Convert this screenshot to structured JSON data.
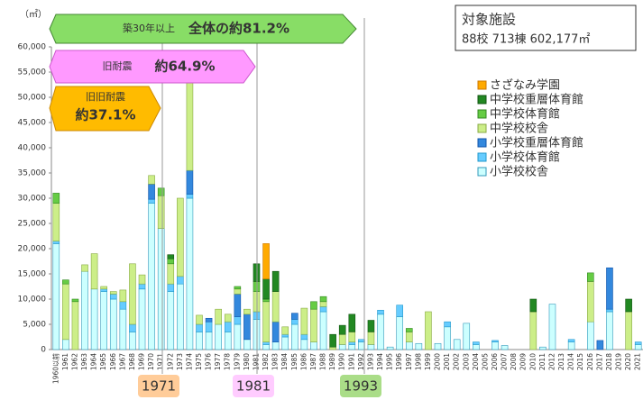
{
  "chart_data": {
    "type": "stacked_bar",
    "y_unit": "（㎡）",
    "facility_title": "対象施設",
    "facility_summary": "88校 713棟 602,177㎡",
    "ann_over30": "築30年以上",
    "ann_over30_pct": "全体の約81.2%",
    "ann_old": "旧耐震",
    "ann_old_pct": "約64.9%",
    "ann_oldold": "旧旧耐震",
    "ann_oldold_pct": "約37.1%",
    "year_tags": [
      "1971",
      "1981",
      "1993"
    ],
    "categories": [
      "1960以前",
      "1961",
      "1962",
      "1963",
      "1964",
      "1965",
      "1966",
      "1967",
      "1968",
      "1969",
      "1970",
      "1971",
      "1972",
      "1973",
      "1974",
      "1975",
      "1976",
      "1977",
      "1978",
      "1979",
      "1980",
      "1981",
      "1982",
      "1983",
      "1984",
      "1985",
      "1986",
      "1987",
      "1988",
      "1989",
      "1990",
      "1991",
      "1992",
      "1993",
      "1994",
      "1995",
      "1996",
      "1997",
      "1998",
      "1999",
      "2000",
      "2001",
      "2002",
      "2003",
      "2004",
      "2005",
      "2006",
      "2007",
      "2008",
      "2009",
      "2010",
      "2011",
      "2012",
      "2013",
      "2014",
      "2015",
      "2016",
      "2017",
      "2018",
      "2019",
      "2020",
      "2021"
    ],
    "series": [
      {
        "name": "小学校校舎",
        "color": "#ccffff",
        "values": [
          21000,
          2000,
          0,
          15500,
          12000,
          11500,
          10000,
          8000,
          3500,
          12000,
          29000,
          24000,
          11500,
          13000,
          30000,
          3500,
          3500,
          5000,
          3500,
          5000,
          2000,
          6000,
          1000,
          1500,
          2500,
          5000,
          2000,
          1500,
          7500,
          0,
          1000,
          1000,
          1500,
          1000,
          7000,
          500,
          6500,
          1500,
          1200,
          0,
          1200,
          4500,
          2000,
          5200,
          1000,
          0,
          1500,
          800,
          0,
          0,
          0,
          500,
          9000,
          0,
          1500,
          0,
          5500,
          0,
          7500,
          0,
          0,
          1000
        ]
      },
      {
        "name": "小学校体育館",
        "color": "#66ccff",
        "values": [
          500,
          0,
          0,
          0,
          0,
          500,
          1000,
          1500,
          1500,
          1000,
          800,
          0,
          1500,
          1500,
          800,
          1500,
          2000,
          0,
          2000,
          1500,
          0,
          1500,
          500,
          0,
          500,
          1000,
          1000,
          0,
          1000,
          0,
          0,
          500,
          500,
          0,
          800,
          0,
          2300,
          0,
          0,
          0,
          0,
          1000,
          0,
          0,
          500,
          0,
          300,
          0,
          0,
          0,
          0,
          0,
          0,
          0,
          500,
          0,
          0,
          0,
          500,
          0,
          0,
          500
        ]
      },
      {
        "name": "小学校重層体育館",
        "color": "#3388dd",
        "values": [
          0,
          0,
          0,
          0,
          0,
          0,
          0,
          0,
          0,
          0,
          3000,
          0,
          0,
          0,
          4700,
          0,
          700,
          0,
          0,
          4500,
          5000,
          0,
          0,
          4000,
          0,
          1200,
          0,
          0,
          0,
          0,
          0,
          0,
          0,
          0,
          0,
          0,
          0,
          0,
          0,
          0,
          0,
          0,
          0,
          0,
          0,
          0,
          0,
          0,
          0,
          0,
          0,
          0,
          0,
          0,
          0,
          0,
          0,
          1800,
          8200,
          0,
          0,
          0
        ]
      },
      {
        "name": "中学校校舎",
        "color": "#ccee88",
        "values": [
          7500,
          11000,
          9500,
          1300,
          7000,
          500,
          500,
          2300,
          12000,
          1800,
          1700,
          6500,
          4000,
          15500,
          22500,
          1800,
          0,
          3000,
          1500,
          1000,
          1000,
          4000,
          8000,
          6000,
          1500,
          0,
          5200,
          6500,
          1000,
          500,
          2000,
          2000,
          0,
          2500,
          0,
          0,
          0,
          2000,
          0,
          7500,
          0,
          0,
          0,
          0,
          0,
          0,
          0,
          0,
          0,
          0,
          7500,
          0,
          0,
          0,
          0,
          0,
          8000,
          0,
          0,
          0,
          7500,
          0
        ]
      },
      {
        "name": "中学校体育館",
        "color": "#66cc44",
        "values": [
          2000,
          800,
          500,
          0,
          0,
          0,
          0,
          0,
          0,
          0,
          0,
          1500,
          1000,
          0,
          0,
          0,
          0,
          0,
          0,
          500,
          0,
          2000,
          500,
          0,
          0,
          0,
          0,
          1500,
          1000,
          0,
          0,
          0,
          0,
          0,
          0,
          0,
          0,
          700,
          0,
          0,
          0,
          0,
          0,
          0,
          0,
          0,
          0,
          0,
          0,
          0,
          0,
          0,
          0,
          0,
          0,
          0,
          1700,
          0,
          0,
          0,
          0,
          0
        ]
      },
      {
        "name": "中学校重層体育館",
        "color": "#228822",
        "values": [
          0,
          0,
          0,
          0,
          0,
          0,
          0,
          0,
          0,
          0,
          0,
          0,
          800,
          0,
          0,
          0,
          0,
          0,
          0,
          0,
          0,
          3500,
          4000,
          4000,
          0,
          0,
          0,
          0,
          0,
          2500,
          1800,
          3500,
          0,
          2300,
          0,
          0,
          0,
          0,
          0,
          0,
          0,
          0,
          0,
          0,
          0,
          0,
          0,
          0,
          0,
          0,
          2500,
          0,
          0,
          0,
          0,
          0,
          0,
          0,
          0,
          0,
          2500,
          0
        ]
      },
      {
        "name": "さざなみ学園",
        "color": "#ffaa00",
        "values": [
          0,
          0,
          0,
          0,
          0,
          0,
          0,
          0,
          0,
          0,
          0,
          0,
          0,
          0,
          0,
          0,
          0,
          0,
          0,
          0,
          0,
          0,
          7000,
          0,
          0,
          0,
          0,
          0,
          0,
          0,
          0,
          0,
          0,
          0,
          0,
          0,
          0,
          0,
          0,
          0,
          0,
          0,
          0,
          0,
          0,
          0,
          0,
          0,
          0,
          0,
          0,
          0,
          0,
          0,
          0,
          0,
          0,
          0,
          0,
          0,
          0,
          0
        ]
      }
    ],
    "ylim": [
      0,
      60000
    ],
    "yticks": [
      0,
      {
        "value": 5000,
        "label": "5,000"
      },
      {
        "value": 10000,
        "label": "10,000"
      },
      {
        "value": 15000,
        "label": "15,000"
      },
      {
        "value": 20000,
        "label": "20,000"
      },
      {
        "value": 25000,
        "label": "25,000"
      },
      {
        "value": 30000,
        "label": "30,000"
      },
      {
        "value": 35000,
        "label": "35,000"
      },
      {
        "value": 40000,
        "label": "40,000"
      },
      {
        "value": 45000,
        "label": "45,000"
      },
      {
        "value": 50000,
        "label": "50,000"
      },
      {
        "value": 55000,
        "label": "55,000"
      },
      {
        "value": 60000,
        "label": "60,000"
      }
    ],
    "grid": false
  }
}
